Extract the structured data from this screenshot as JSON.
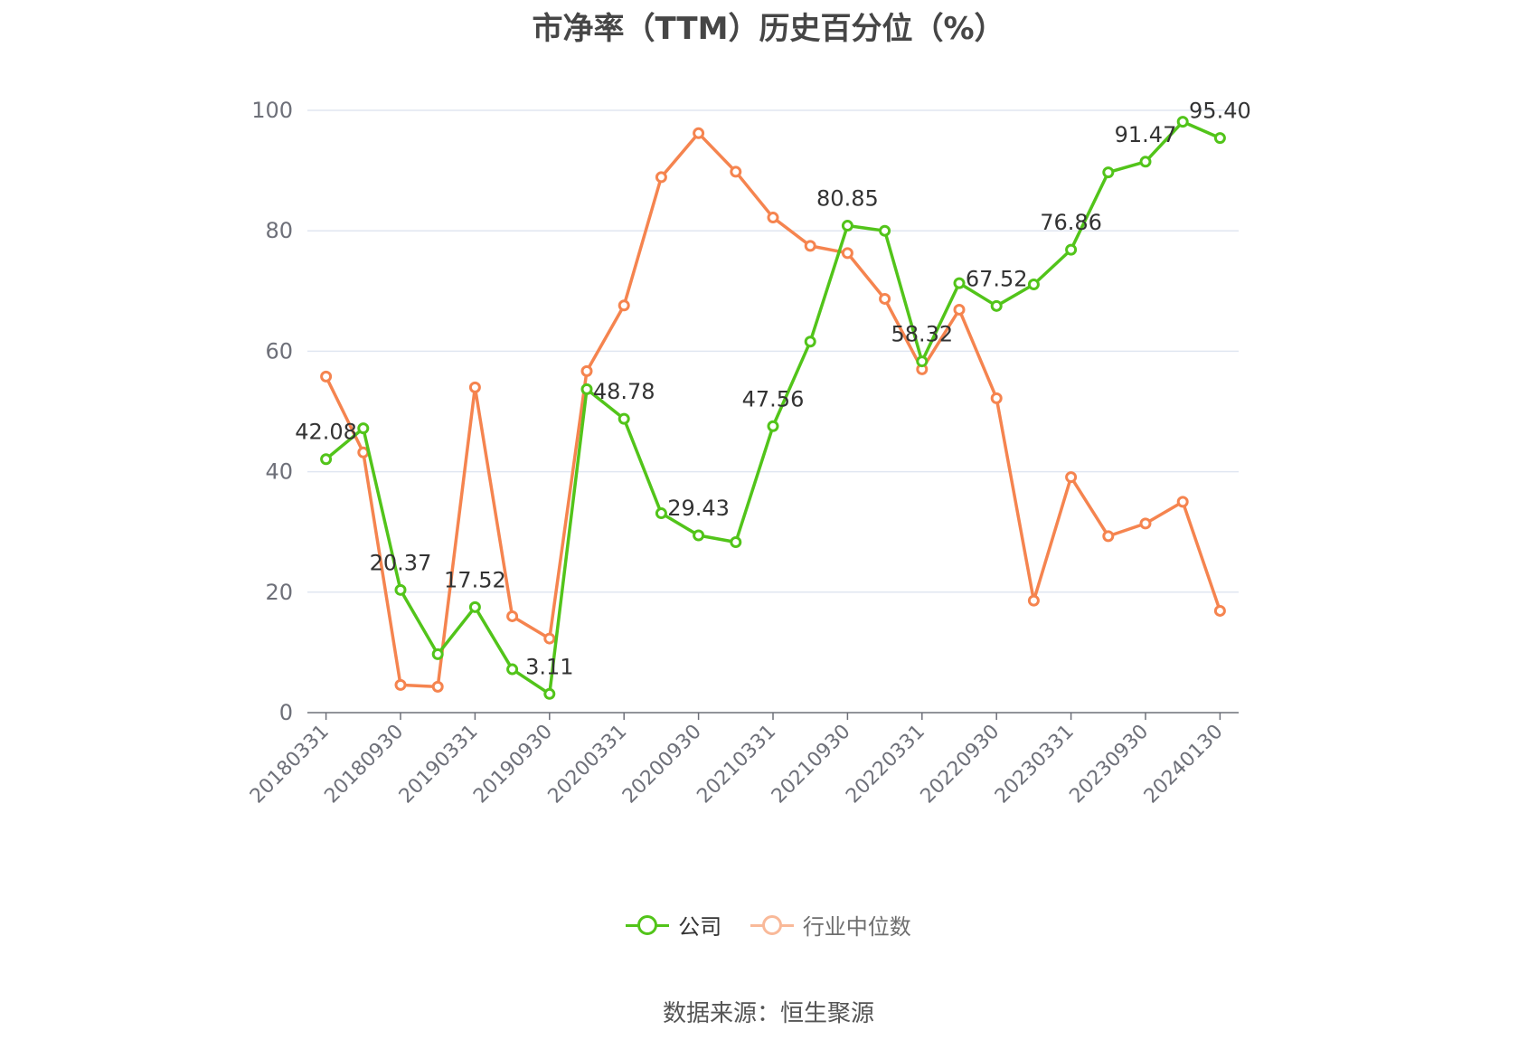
{
  "title": "市净率（TTM）历史百分位（%）",
  "source": "数据来源：恒生聚源",
  "colors": {
    "company": "#52c41a",
    "industry": "#f5844f",
    "grid": "#e0e6f1",
    "axis": "#6e7079",
    "tick_text": "#6e7079"
  },
  "legend": {
    "company": "公司",
    "industry": "行业中位数"
  },
  "chart_data": {
    "type": "line",
    "title": "市净率（TTM）历史百分位（%）",
    "xlabel": "",
    "ylabel": "",
    "ylim": [
      0,
      100
    ],
    "yticks": [
      0,
      20,
      40,
      60,
      80,
      100
    ],
    "grid": true,
    "legend_position": "bottom",
    "x": [
      "20180331",
      "20180630",
      "20180930",
      "20181231",
      "20190331",
      "20190630",
      "20190930",
      "20191231",
      "20200331",
      "20200630",
      "20200930",
      "20201231",
      "20210331",
      "20210630",
      "20210930",
      "20211231",
      "20220331",
      "20220630",
      "20220930",
      "20221231",
      "20230331",
      "20230630",
      "20230930",
      "20231231",
      "20240130"
    ],
    "xtick_labels": [
      "20180331",
      "20180930",
      "20190331",
      "20190930",
      "20200331",
      "20200930",
      "20210331",
      "20210930",
      "20220331",
      "20220930",
      "20230331",
      "20230930",
      "20240130"
    ],
    "series": [
      {
        "name": "公司",
        "values": [
          42.08,
          47.2,
          20.37,
          9.7,
          17.52,
          7.2,
          3.11,
          53.7,
          48.78,
          33.1,
          29.43,
          28.3,
          47.56,
          61.6,
          80.85,
          80.0,
          58.32,
          71.3,
          67.52,
          71.1,
          76.86,
          89.7,
          91.47,
          98.1,
          95.4
        ],
        "labels": [
          "42.08",
          null,
          "20.37",
          null,
          "17.52",
          null,
          "3.11",
          null,
          "48.78",
          null,
          "29.43",
          null,
          "47.56",
          null,
          "80.85",
          null,
          "58.32",
          null,
          "67.52",
          null,
          "76.86",
          null,
          "91.47",
          null,
          "95.40"
        ]
      },
      {
        "name": "行业中位数",
        "values": [
          55.8,
          43.2,
          4.6,
          4.3,
          54.0,
          16.0,
          12.3,
          56.7,
          67.6,
          88.9,
          96.2,
          89.8,
          82.2,
          77.5,
          76.3,
          68.7,
          57.0,
          66.9,
          52.2,
          18.6,
          39.1,
          29.3,
          31.4,
          35.0,
          16.9
        ]
      }
    ]
  }
}
